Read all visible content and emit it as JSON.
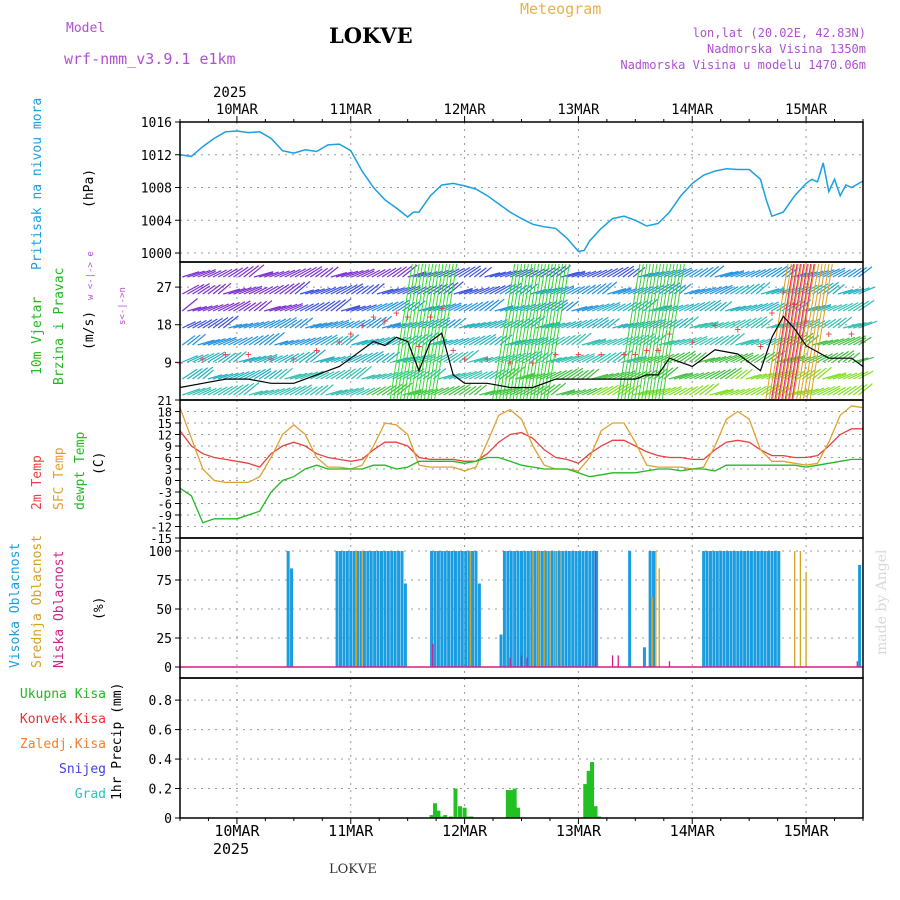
{
  "header": {
    "model_label": "Model",
    "model_name": "wrf-nmm_v3.9.1 e1km",
    "station": "LOKVE",
    "product": "Meteogram",
    "coords": "lon,lat (20.02E, 42.83N)",
    "elevation": "Nadmorska Visina 1350m",
    "model_elevation": "Nadmorska Visina u modelu 1470.06m",
    "year": "2025",
    "footer_station": "LOKVE",
    "watermark": "made by Angel"
  },
  "colors": {
    "pressure": "#1aa0e0",
    "wind_green": "#22c022",
    "temp2m": "#e84040",
    "sfc": "#e0a030",
    "dew": "#22b822",
    "cloud_high": "#1a9de0",
    "cloud_mid": "#d4a020",
    "cloud_low": "#d0208a",
    "conv": "#e83030",
    "frozen": "#f08030",
    "snow": "#4040e0",
    "grad": "#30c0c0",
    "purple_text": "#b050d0",
    "orange_text": "#e8b050"
  },
  "panels": {
    "pressure": {
      "label": "Pritisak na nivou mora",
      "unit": "(hPa)",
      "ticks": [
        "1016",
        "1012",
        "1008",
        "1004",
        "1000"
      ]
    },
    "wind": {
      "label1": "10m Vjetar",
      "label2": "Brzina i Pravac",
      "unit": "(m/s)",
      "ticks": [
        "27",
        "18",
        "9"
      ],
      "compass": "w <-|-> e",
      "compass2": "s<-|->n"
    },
    "temp": {
      "label1": "2m Temp",
      "label2": "SFC Temp",
      "label3": "dewpt Temp",
      "unit": "(C)",
      "ticks": [
        "21",
        "18",
        "15",
        "12",
        "9",
        "6",
        "3",
        "0",
        "-3",
        "-6",
        "-9",
        "-12",
        "-15"
      ]
    },
    "cloud": {
      "label1": "Visoka Oblacnost",
      "label2": "Srednja Oblacnost",
      "label3": "Niska Oblacnost",
      "unit": "(%)",
      "ticks": [
        "100",
        "75",
        "50",
        "25",
        "0"
      ]
    },
    "precip": {
      "labels": [
        "Ukupna Kisa",
        "Konvek.Kisa",
        "Zaledj.Kisa",
        "Snijeg",
        "Grad"
      ],
      "unit": "1hr Precip (mm)",
      "ticks": [
        "0.8",
        "0.6",
        "0.4",
        "0.2",
        "0"
      ]
    }
  },
  "days": [
    "10MAR",
    "11MAR",
    "12MAR",
    "13MAR",
    "14MAR",
    "15MAR"
  ],
  "chart_data": [
    {
      "type": "line",
      "ylabel": "Pritisak na nivou mora (hPa)",
      "ylim": [
        1000,
        1016
      ],
      "x": [
        9.5,
        9.6,
        9.7,
        9.8,
        9.9,
        10.0,
        10.1,
        10.2,
        10.3,
        10.4,
        10.5,
        10.6,
        10.7,
        10.8,
        10.9,
        11.0,
        11.1,
        11.2,
        11.3,
        11.4,
        11.5,
        11.55,
        11.6,
        11.7,
        11.8,
        11.9,
        12.0,
        12.1,
        12.2,
        12.3,
        12.4,
        12.5,
        12.6,
        12.7,
        12.8,
        12.9,
        13.0,
        13.05,
        13.1,
        13.2,
        13.3,
        13.4,
        13.5,
        13.6,
        13.7,
        13.8,
        13.9,
        14.0,
        14.1,
        14.2,
        14.3,
        14.4,
        14.5,
        14.6,
        14.65,
        14.7,
        14.8,
        14.9,
        15.0,
        15.05,
        15.1,
        15.15,
        15.2,
        15.25,
        15.3,
        15.35,
        15.4,
        15.5
      ],
      "series": [
        {
          "values": [
            1012,
            1011.8,
            1013,
            1014,
            1014.8,
            1014.9,
            1014.7,
            1014.8,
            1014,
            1012.5,
            1012.2,
            1012.6,
            1012.4,
            1013.2,
            1013.3,
            1012.5,
            1010,
            1008,
            1006.5,
            1005.5,
            1004.4,
            1005,
            1005,
            1007,
            1008.3,
            1008.5,
            1008.2,
            1007.8,
            1007,
            1006,
            1005,
            1004.2,
            1003.5,
            1003.2,
            1003,
            1001.8,
            1000.2,
            1000.3,
            1001.5,
            1003,
            1004.2,
            1004.5,
            1004,
            1003.3,
            1003.6,
            1005,
            1007,
            1008.5,
            1009.5,
            1010,
            1010.3,
            1010.2,
            1010.2,
            1009,
            1006.5,
            1004.5,
            1005,
            1007,
            1008.5,
            1009,
            1008.7,
            1011,
            1007.5,
            1009,
            1007,
            1008.3,
            1008,
            1008.8
          ]
        }
      ]
    },
    {
      "type": "line",
      "ylabel": "10m Vjetar Brzina i Pravac (m/s)",
      "ylim": [
        0,
        33
      ],
      "x": [
        9.5,
        9.7,
        9.9,
        10.1,
        10.3,
        10.5,
        10.7,
        10.9,
        11.0,
        11.1,
        11.2,
        11.3,
        11.4,
        11.5,
        11.6,
        11.7,
        11.8,
        11.9,
        12.0,
        12.2,
        12.4,
        12.6,
        12.8,
        13.0,
        13.2,
        13.4,
        13.5,
        13.6,
        13.7,
        13.8,
        14.0,
        14.2,
        14.4,
        14.6,
        14.7,
        14.8,
        14.9,
        15.0,
        15.2,
        15.4,
        15.5
      ],
      "series": [
        {
          "values": [
            3,
            4,
            5,
            5,
            4,
            4,
            6,
            8,
            10,
            12,
            14,
            13,
            15,
            14,
            7,
            14,
            16,
            6,
            4,
            4,
            3,
            3,
            5,
            5,
            5,
            5,
            5,
            6,
            6,
            10,
            8,
            12,
            11,
            7,
            15,
            20,
            17,
            13,
            10,
            10,
            8
          ]
        }
      ]
    },
    {
      "type": "line",
      "ylabel": "Temp (C)",
      "ylim": [
        -15,
        21
      ],
      "x": [
        9.5,
        9.6,
        9.7,
        9.8,
        9.9,
        10.0,
        10.1,
        10.2,
        10.3,
        10.4,
        10.5,
        10.6,
        10.7,
        10.8,
        10.9,
        11.0,
        11.1,
        11.2,
        11.3,
        11.4,
        11.5,
        11.6,
        11.7,
        11.8,
        11.9,
        12.0,
        12.1,
        12.2,
        12.3,
        12.4,
        12.5,
        12.6,
        12.7,
        12.8,
        12.9,
        13.0,
        13.1,
        13.2,
        13.3,
        13.4,
        13.5,
        13.6,
        13.7,
        13.8,
        13.9,
        14.0,
        14.1,
        14.2,
        14.3,
        14.4,
        14.5,
        14.6,
        14.7,
        14.8,
        14.9,
        15.0,
        15.1,
        15.2,
        15.3,
        15.4,
        15.5
      ],
      "series": [
        {
          "name": "2m Temp",
          "values": [
            13,
            9,
            7,
            6,
            5.5,
            5,
            4.5,
            3.5,
            7,
            9,
            10,
            9,
            7,
            6,
            5.5,
            5,
            5.5,
            8,
            10,
            10,
            9,
            6,
            5.5,
            5.5,
            5.5,
            5,
            5,
            7,
            10,
            12,
            12.5,
            11,
            8,
            6,
            5.5,
            4.5,
            7,
            9,
            10.5,
            10.5,
            9,
            7.5,
            6.5,
            6,
            6,
            5.5,
            5.5,
            8,
            10,
            10.5,
            10,
            8,
            6.5,
            6.5,
            6,
            6,
            6.5,
            9,
            12,
            13.5,
            13.5
          ]
        },
        {
          "name": "SFC Temp",
          "values": [
            19,
            11,
            3,
            0,
            -0.5,
            -0.5,
            -0.5,
            1,
            6,
            12,
            14.5,
            12,
            6,
            3.5,
            3.5,
            3,
            4,
            9,
            15,
            14.5,
            12,
            4,
            3.5,
            3.5,
            3.5,
            2.5,
            3.5,
            10,
            17,
            18.5,
            16,
            9,
            4,
            3,
            3,
            2.5,
            6,
            13,
            15,
            15,
            10,
            4,
            3.5,
            3.5,
            3.5,
            3,
            3.5,
            9,
            16,
            18,
            16,
            8,
            5,
            5,
            4.5,
            4,
            4.5,
            10,
            17,
            19.5,
            19
          ]
        },
        {
          "name": "dewpt Temp",
          "values": [
            -2,
            -4,
            -11,
            -10,
            -10,
            -10,
            -9,
            -8,
            -3,
            0,
            1,
            3,
            4,
            3,
            3,
            3,
            3,
            4,
            4,
            3,
            3.5,
            5,
            5,
            5,
            5,
            4.5,
            5,
            6,
            6,
            5,
            4,
            3.5,
            3,
            3,
            3,
            2,
            1,
            1.5,
            2,
            2,
            2,
            2.5,
            3,
            3,
            2.5,
            3,
            3,
            2.5,
            4,
            4,
            4,
            4,
            4,
            4,
            4,
            3.5,
            4,
            4.5,
            5,
            5.5,
            5.5
          ]
        }
      ]
    },
    {
      "type": "bar",
      "ylabel": "Oblacnost (%)",
      "ylim": [
        0,
        100
      ],
      "series": [
        {
          "name": "Visoka Oblacnost",
          "x": [
            10.45,
            10.48,
            10.88,
            10.91,
            10.94,
            10.97,
            11.0,
            11.03,
            11.06,
            11.09,
            11.12,
            11.15,
            11.18,
            11.21,
            11.24,
            11.27,
            11.3,
            11.33,
            11.36,
            11.39,
            11.42,
            11.45,
            11.48,
            11.71,
            11.74,
            11.77,
            11.8,
            11.83,
            11.86,
            11.89,
            11.92,
            11.95,
            11.98,
            12.01,
            12.04,
            12.07,
            12.1,
            12.13,
            12.32,
            12.35,
            12.38,
            12.41,
            12.44,
            12.47,
            12.5,
            12.53,
            12.56,
            12.59,
            12.62,
            12.65,
            12.68,
            12.71,
            12.74,
            12.77,
            12.8,
            12.83,
            12.86,
            12.89,
            12.92,
            12.95,
            12.98,
            13.01,
            13.04,
            13.07,
            13.1,
            13.13,
            13.16,
            13.45,
            13.58,
            13.63,
            13.66,
            14.1,
            14.13,
            14.16,
            14.19,
            14.22,
            14.25,
            14.28,
            14.31,
            14.34,
            14.37,
            14.4,
            14.43,
            14.46,
            14.49,
            14.52,
            14.55,
            14.58,
            14.61,
            14.64,
            14.67,
            14.7,
            14.73,
            14.76,
            15.47
          ],
          "values": [
            100,
            85,
            100,
            100,
            100,
            100,
            100,
            100,
            100,
            100,
            100,
            100,
            100,
            100,
            100,
            100,
            100,
            100,
            100,
            100,
            100,
            100,
            72,
            100,
            100,
            100,
            100,
            100,
            100,
            100,
            100,
            100,
            100,
            100,
            100,
            100,
            100,
            72,
            28,
            100,
            100,
            100,
            100,
            100,
            100,
            100,
            100,
            100,
            100,
            100,
            100,
            100,
            100,
            100,
            100,
            100,
            100,
            100,
            100,
            100,
            100,
            100,
            100,
            100,
            100,
            100,
            100,
            100,
            17,
            100,
            100,
            100,
            100,
            100,
            100,
            100,
            100,
            100,
            100,
            100,
            100,
            100,
            100,
            100,
            100,
            100,
            100,
            100,
            100,
            100,
            100,
            100,
            100,
            100,
            88
          ]
        },
        {
          "name": "Srednja Oblacnost",
          "x": [
            11.05,
            11.1,
            12.05,
            12.6,
            12.65,
            12.7,
            12.75,
            12.8,
            12.85,
            13.65,
            13.68,
            13.71,
            14.9,
            14.95,
            15.0
          ],
          "values": [
            100,
            100,
            100,
            100,
            100,
            100,
            100,
            100,
            100,
            60,
            100,
            85,
            100,
            100,
            82
          ]
        },
        {
          "name": "Niska Oblacnost",
          "x": [
            11.72,
            12.4,
            12.5,
            12.55,
            13.15,
            13.3,
            13.35,
            13.8,
            15.45
          ],
          "values": [
            20,
            8,
            10,
            8,
            100,
            10,
            10,
            5,
            5
          ]
        }
      ]
    },
    {
      "type": "bar",
      "ylabel": "1hr Precip (mm)",
      "ylim": [
        0,
        0.95
      ],
      "series": [
        {
          "name": "Ukupna Kisa",
          "x": [
            11.71,
            11.74,
            11.77,
            11.8,
            11.83,
            11.88,
            11.92,
            11.96,
            12.0,
            12.03,
            12.06,
            12.38,
            12.41,
            12.44,
            12.47,
            13.06,
            13.09,
            13.12,
            13.15,
            13.18
          ],
          "values": [
            0.02,
            0.1,
            0.05,
            0.01,
            0.02,
            0.01,
            0.2,
            0.08,
            0.07,
            0.01,
            0.01,
            0.19,
            0.19,
            0.2,
            0.07,
            0.23,
            0.32,
            0.38,
            0.08,
            0.01
          ]
        }
      ]
    }
  ]
}
